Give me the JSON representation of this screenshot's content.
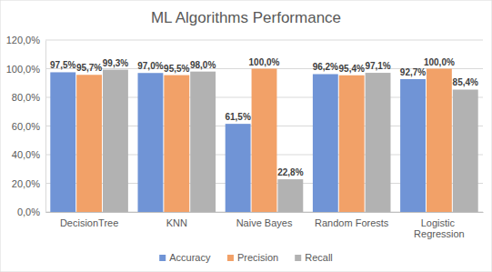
{
  "chart_data": {
    "type": "bar",
    "title": "ML Algorithms Performance",
    "categories": [
      "DecisionTree",
      "KNN",
      "Naive Bayes",
      "Random Forests",
      "Logistic Regression"
    ],
    "series": [
      {
        "name": "Accuracy",
        "color": "#7094d6",
        "values": [
          97.5,
          97.0,
          61.5,
          96.2,
          92.7
        ],
        "value_labels": [
          "97,5%",
          "97,0%",
          "61,5%",
          "96,2%",
          "92,7%"
        ]
      },
      {
        "name": "Precision",
        "color": "#f2a168",
        "values": [
          95.7,
          95.5,
          100.0,
          95.4,
          100.0
        ],
        "value_labels": [
          "95,7%",
          "95,5%",
          "100,0%",
          "95,4%",
          "100,0%"
        ]
      },
      {
        "name": "Recall",
        "color": "#b2b2b2",
        "values": [
          99.3,
          98.0,
          22.8,
          97.1,
          85.4
        ],
        "value_labels": [
          "99,3%",
          "98,0%",
          "22,8%",
          "97,1%",
          "85,4%"
        ]
      }
    ],
    "ylim": [
      0,
      120
    ],
    "yticks": [
      {
        "value": 0,
        "label": "0,0%"
      },
      {
        "value": 20,
        "label": "20,0%"
      },
      {
        "value": 40,
        "label": "40,0%"
      },
      {
        "value": 60,
        "label": "60,0%"
      },
      {
        "value": 80,
        "label": "80,0%"
      },
      {
        "value": 100,
        "label": "100,0%"
      },
      {
        "value": 120,
        "label": "120,0%"
      }
    ],
    "grid": true,
    "data_labels": true,
    "legend": "bottom"
  }
}
